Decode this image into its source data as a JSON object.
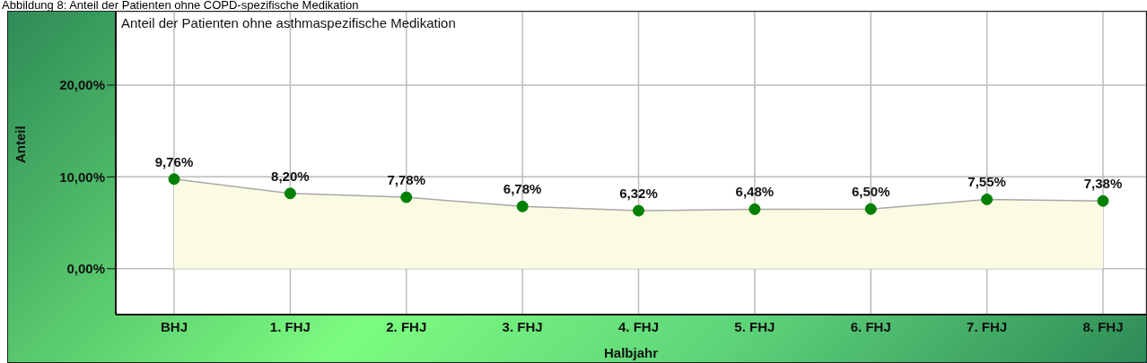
{
  "chart_data": {
    "type": "area",
    "title": "Abbildung 8: Anteil der Patienten ohne COPD-spezifische Medikation",
    "subtitle": "Anteil der Patienten ohne asthmaspezifische Medikation",
    "xlabel": "Halbjahr",
    "ylabel": "Anteil",
    "categories": [
      "BHJ",
      "1. FHJ",
      "2. FHJ",
      "3. FHJ",
      "4. FHJ",
      "5. FHJ",
      "6. FHJ",
      "7. FHJ",
      "8. FHJ"
    ],
    "series": [
      {
        "color": "#008000",
        "values": [
          9.76,
          8.2,
          7.78,
          6.78,
          6.32,
          6.48,
          6.5,
          7.55,
          7.38
        ],
        "value_labels": [
          "9,76%",
          "8,20%",
          "7,78%",
          "6,78%",
          "6,32%",
          "6,48%",
          "6,50%",
          "7,55%",
          "7,38%"
        ]
      }
    ],
    "ylim": [
      -5,
      28
    ],
    "yticks": [
      {
        "value": 0,
        "label": "0,00%"
      },
      {
        "value": 10,
        "label": "10,00%"
      },
      {
        "value": 20,
        "label": "20,00%"
      }
    ],
    "grid": true,
    "marker": "circle"
  }
}
